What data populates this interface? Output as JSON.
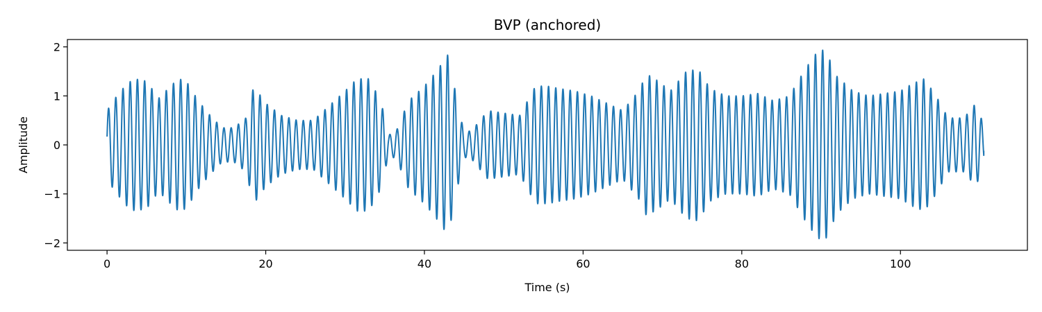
{
  "chart_data": {
    "type": "line",
    "title": "BVP (anchored)",
    "xlabel": "Time (s)",
    "ylabel": "Amplitude",
    "xlim": [
      -5,
      116
    ],
    "ylim": [
      -2.15,
      2.15
    ],
    "x_ticks": [
      0,
      20,
      40,
      60,
      80,
      100
    ],
    "y_ticks": [
      -2,
      -1,
      0,
      1,
      2
    ],
    "x_tick_labels": [
      "0",
      "20",
      "40",
      "60",
      "80",
      "100"
    ],
    "y_tick_labels": [
      "−2",
      "−1",
      "0",
      "1",
      "2"
    ],
    "grid": false,
    "color": "#1f77b4",
    "series": [
      {
        "duration_s": 110.5,
        "dominant_frequency_hz": 1.1,
        "start_value": 0.17,
        "end_value": -0.12,
        "envelope": {
          "t": [
            0,
            1,
            2.5,
            3.5,
            5,
            6.5,
            8,
            9,
            10,
            11.5,
            13,
            14.5,
            16,
            17.5,
            18.5,
            20,
            22,
            24,
            26,
            28,
            30,
            31.5,
            33,
            34.5,
            35.5,
            36.5,
            38,
            40,
            41.5,
            43,
            44,
            45,
            46,
            48,
            50,
            52,
            54,
            55.5,
            57,
            59,
            61,
            63,
            65,
            67,
            68,
            69.5,
            71,
            73,
            74.5,
            76,
            78,
            80,
            82,
            84,
            86,
            88,
            89.5,
            90.5,
            92,
            94,
            96,
            98,
            100,
            101.5,
            103,
            104.5,
            106,
            108,
            109.5,
            110.5
          ],
          "amp": [
            0.7,
            0.95,
            1.25,
            1.35,
            1.3,
            0.95,
            1.2,
            1.35,
            1.3,
            0.9,
            0.6,
            0.35,
            0.35,
            0.55,
            1.2,
            0.85,
            0.6,
            0.5,
            0.5,
            0.8,
            1.1,
            1.35,
            1.35,
            0.9,
            0.2,
            0.3,
            0.9,
            1.2,
            1.5,
            1.85,
            1.0,
            0.25,
            0.3,
            0.7,
            0.65,
            0.6,
            1.2,
            1.2,
            1.15,
            1.1,
            1.0,
            0.85,
            0.7,
            1.1,
            1.45,
            1.3,
            1.1,
            1.5,
            1.55,
            1.15,
            1.0,
            1.0,
            1.05,
            0.9,
            1.0,
            1.55,
            1.9,
            1.95,
            1.4,
            1.1,
            1.0,
            1.05,
            1.1,
            1.25,
            1.35,
            1.0,
            0.55,
            0.55,
            0.85,
            0.4
          ]
        }
      }
    ]
  }
}
